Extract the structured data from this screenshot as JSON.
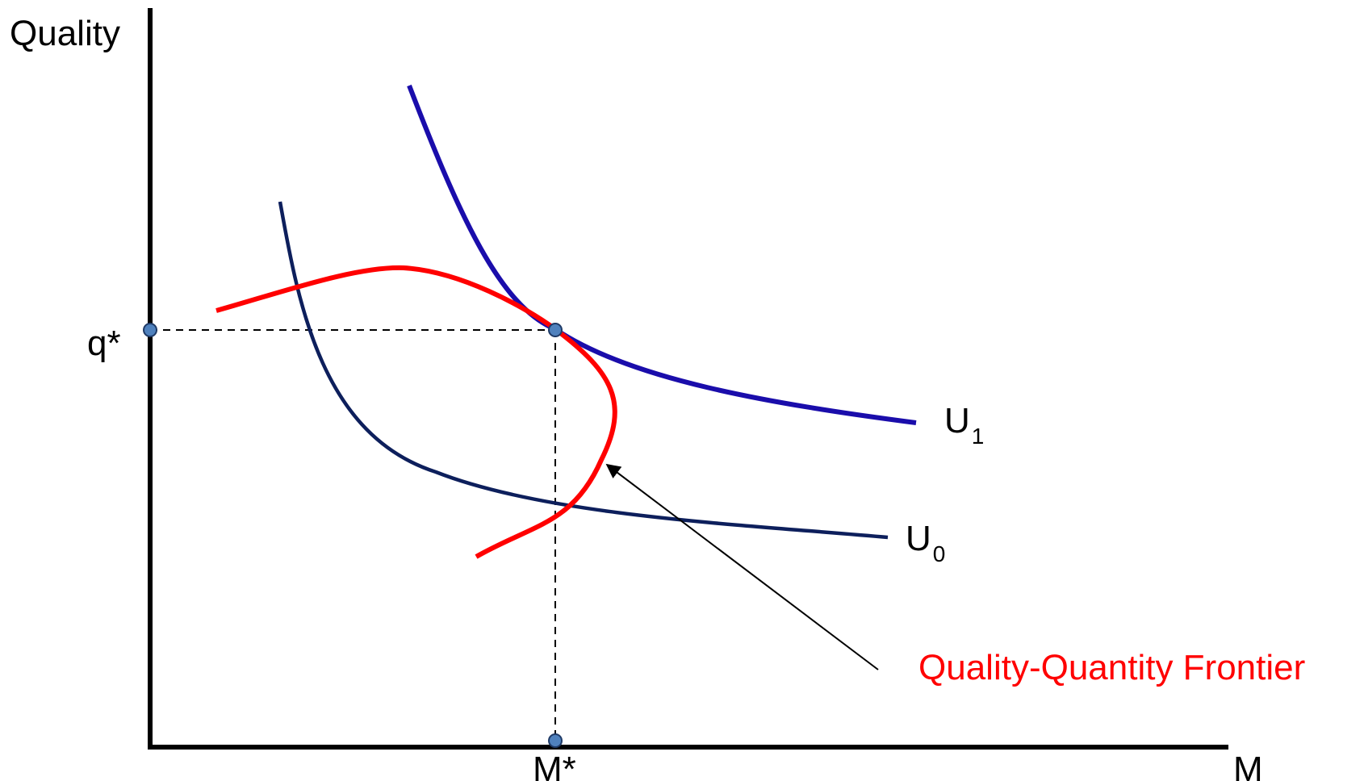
{
  "axes": {
    "y_label": "Quality",
    "x_label": "M"
  },
  "equilibrium": {
    "q_label": "q*",
    "m_label": "M*"
  },
  "curves": {
    "u1": {
      "label_main": "U",
      "label_sub": "1",
      "color": "#1a0dab"
    },
    "u0": {
      "label_main": "U",
      "label_sub": "0",
      "color": "#0d1f5c"
    },
    "frontier": {
      "label": "Quality-Quantity Frontier",
      "color": "#ff0000"
    }
  },
  "colors": {
    "axis": "#000000",
    "point_fill": "#4f81bd",
    "point_stroke": "#1f3a66",
    "guide": "#000000"
  }
}
